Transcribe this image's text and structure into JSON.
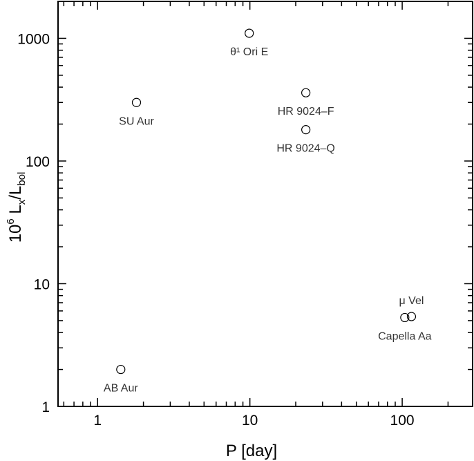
{
  "chart_data": {
    "type": "scatter",
    "title": "",
    "xlabel": "P [day]",
    "ylabel": {
      "main": "10",
      "sup": "6",
      "mid": " L",
      "sub1": "x",
      "slash": "/L",
      "sub2": "bol"
    },
    "xscale": "log",
    "yscale": "log",
    "xlim": [
      0.55,
      290
    ],
    "ylim": [
      1,
      2000
    ],
    "x_ticks": [
      {
        "value": 1,
        "label": "1"
      },
      {
        "value": 10,
        "label": "10"
      },
      {
        "value": 100,
        "label": "100"
      }
    ],
    "y_ticks": [
      {
        "value": 1,
        "label": "1"
      },
      {
        "value": 10,
        "label": "10"
      },
      {
        "value": 100,
        "label": "100"
      },
      {
        "value": 1000,
        "label": "1000"
      }
    ],
    "grid": false,
    "marker": "open-circle",
    "points": [
      {
        "name": "AB Aur",
        "x": 1.42,
        "y": 2.0,
        "label_pos": "below"
      },
      {
        "name": "SU Aur",
        "x": 1.8,
        "y": 300,
        "label_pos": "below"
      },
      {
        "name": "θ¹ Ori E",
        "x": 9.9,
        "y": 1100,
        "label_pos": "below"
      },
      {
        "name": "HR 9024–F",
        "x": 23.3,
        "y": 360,
        "label_pos": "below"
      },
      {
        "name": "HR 9024–Q",
        "x": 23.3,
        "y": 180,
        "label_pos": "below"
      },
      {
        "name": "μ Vel",
        "x": 115,
        "y": 5.4,
        "label_pos": "above"
      },
      {
        "name": "Capella Aa",
        "x": 104,
        "y": 5.3,
        "label_pos": "below"
      }
    ]
  }
}
